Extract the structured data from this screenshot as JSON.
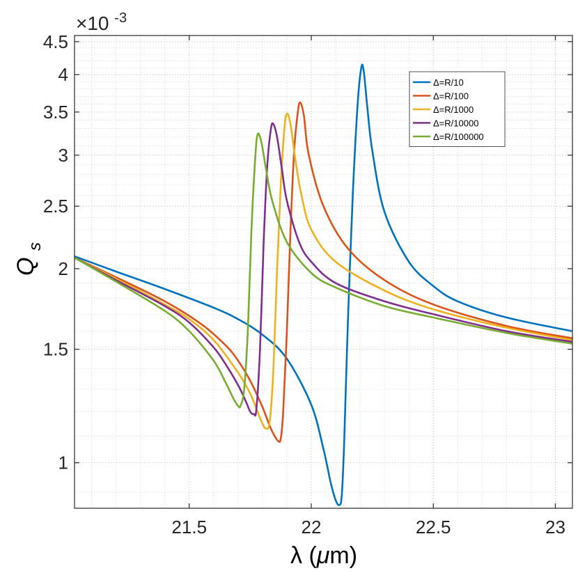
{
  "chart_data": {
    "type": "line",
    "yscale": "log",
    "title": "",
    "xlabel": "λ (μm)",
    "ylabel": "Q_s",
    "xlabel_main": "λ (",
    "xlabel_mu": "μ",
    "xlabel_rest": "m)",
    "ylabel_main": "Q",
    "ylabel_sub": "s",
    "exponent_base": "×10",
    "exponent_power": "-3",
    "xlim": [
      21.03,
      23.07
    ],
    "ylim": [
      0.85,
      4.6
    ],
    "xticks": [
      21.5,
      22,
      22.5,
      23
    ],
    "xtick_labels": [
      "21.5",
      "22",
      "22.5",
      "23"
    ],
    "yticks": [
      1,
      1.5,
      2,
      2.5,
      3,
      3.5,
      4,
      4.5
    ],
    "ytick_labels": [
      "1",
      "1.5",
      "2",
      "2.5",
      "3",
      "3.5",
      "4",
      "4.5"
    ],
    "grid": true,
    "legend_position": "top-right",
    "series": [
      {
        "name": "Δ=R/10",
        "color": "#0072BD",
        "x": [
          21.03,
          21.2,
          21.4,
          21.6,
          21.7,
          21.8,
          21.9,
          22.0,
          22.05,
          22.08,
          22.1,
          22.115,
          22.125,
          22.135,
          22.15,
          22.17,
          22.19,
          22.205,
          22.215,
          22.23,
          22.25,
          22.3,
          22.4,
          22.5,
          22.6,
          22.8,
          23.07
        ],
        "y": [
          2.09,
          1.98,
          1.86,
          1.74,
          1.67,
          1.58,
          1.45,
          1.23,
          1.05,
          0.93,
          0.875,
          0.86,
          0.89,
          1.08,
          1.65,
          2.6,
          3.6,
          4.1,
          4.05,
          3.55,
          3.05,
          2.45,
          2.05,
          1.88,
          1.78,
          1.68,
          1.6
        ]
      },
      {
        "name": "Δ=R/100",
        "color": "#D95319",
        "x": [
          21.03,
          21.2,
          21.4,
          21.55,
          21.65,
          21.7,
          21.75,
          21.8,
          21.83,
          21.85,
          21.865,
          21.875,
          21.885,
          21.9,
          21.915,
          21.93,
          21.945,
          21.955,
          21.97,
          21.99,
          22.05,
          22.15,
          22.3,
          22.5,
          22.8,
          23.07
        ],
        "y": [
          2.08,
          1.94,
          1.78,
          1.64,
          1.52,
          1.44,
          1.34,
          1.22,
          1.14,
          1.1,
          1.08,
          1.09,
          1.2,
          1.6,
          2.3,
          3.05,
          3.5,
          3.62,
          3.45,
          3.0,
          2.5,
          2.15,
          1.92,
          1.76,
          1.63,
          1.56
        ]
      },
      {
        "name": "Δ=R/1000",
        "color": "#EDB120",
        "x": [
          21.03,
          21.2,
          21.4,
          21.5,
          21.6,
          21.7,
          21.75,
          21.78,
          21.8,
          21.815,
          21.83,
          21.845,
          21.86,
          21.875,
          21.89,
          21.9,
          21.915,
          21.935,
          21.96,
          22.0,
          22.1,
          22.3,
          22.5,
          22.8,
          23.07
        ],
        "y": [
          2.08,
          1.93,
          1.76,
          1.67,
          1.55,
          1.38,
          1.28,
          1.2,
          1.15,
          1.13,
          1.16,
          1.4,
          2.0,
          2.7,
          3.3,
          3.48,
          3.35,
          2.95,
          2.6,
          2.3,
          2.05,
          1.85,
          1.73,
          1.62,
          1.55
        ]
      },
      {
        "name": "Δ=R/10000",
        "color": "#7E2F8E",
        "x": [
          21.03,
          21.2,
          21.4,
          21.5,
          21.6,
          21.65,
          21.7,
          21.73,
          21.75,
          21.765,
          21.775,
          21.79,
          21.805,
          21.82,
          21.835,
          21.845,
          21.86,
          21.88,
          21.9,
          21.95,
          22.0,
          22.1,
          22.3,
          22.5,
          22.8,
          23.07
        ],
        "y": [
          2.08,
          1.92,
          1.75,
          1.65,
          1.51,
          1.42,
          1.32,
          1.25,
          1.2,
          1.19,
          1.21,
          1.5,
          2.2,
          2.9,
          3.3,
          3.35,
          3.2,
          2.85,
          2.55,
          2.2,
          2.05,
          1.9,
          1.78,
          1.7,
          1.6,
          1.54
        ]
      },
      {
        "name": "Δ=R/100000",
        "color": "#77AC30",
        "x": [
          21.03,
          21.2,
          21.4,
          21.5,
          21.6,
          21.65,
          21.68,
          21.7,
          21.71,
          21.725,
          21.74,
          21.755,
          21.77,
          21.78,
          21.795,
          21.815,
          21.84,
          21.9,
          22.0,
          22.1,
          22.3,
          22.5,
          22.8,
          23.07
        ],
        "y": [
          2.08,
          1.91,
          1.72,
          1.6,
          1.44,
          1.33,
          1.26,
          1.225,
          1.225,
          1.3,
          1.6,
          2.3,
          2.95,
          3.23,
          3.15,
          2.85,
          2.55,
          2.2,
          1.97,
          1.87,
          1.75,
          1.68,
          1.59,
          1.53
        ]
      }
    ]
  }
}
